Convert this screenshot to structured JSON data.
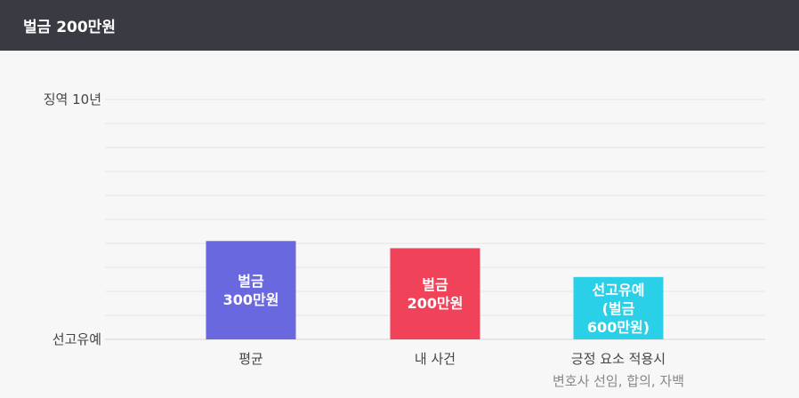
{
  "header": {
    "title": "벌금 200만원"
  },
  "chart_data": {
    "type": "bar",
    "y_axis_labels": {
      "top": "징역 10년",
      "bottom": "선고유예"
    },
    "categories": [
      {
        "label": "평균",
        "sublabel": "",
        "bar_text": [
          "벌금",
          "300만원"
        ],
        "value": 0.41,
        "color": "#6a68df"
      },
      {
        "label": "내 사건",
        "sublabel": "",
        "bar_text": [
          "벌금",
          "200만원"
        ],
        "value": 0.38,
        "color": "#f0435a"
      },
      {
        "label": "긍정 요소 적용시",
        "sublabel": "변호사 선임, 합의, 자백",
        "bar_text": [
          "선고유예",
          "(벌금",
          "600만원)"
        ],
        "value": 0.26,
        "color": "#29d0e8"
      }
    ],
    "value_scale": "fraction of range from 선고유예 (0) to 징역 10년 (1)",
    "grid": true,
    "grid_color": "#e6e6e6",
    "text_color": "#444444",
    "sublabel_color": "#888888"
  }
}
